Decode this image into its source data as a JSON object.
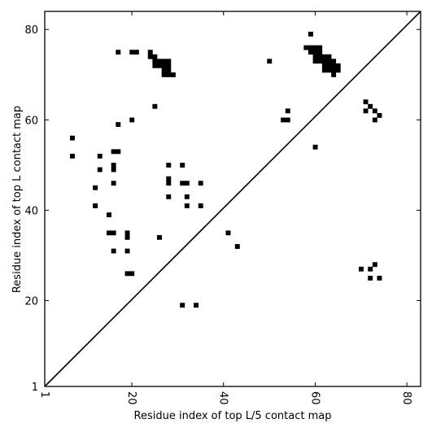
{
  "chart_data": {
    "type": "scatter",
    "title": "",
    "xlabel": "Residue index of top L/5 contact map",
    "ylabel": "Residue index of top L contact map",
    "xlim": [
      1,
      83
    ],
    "ylim": [
      1,
      84
    ],
    "x_ticks": [
      1,
      20,
      40,
      60,
      80
    ],
    "x_tick_labels": [
      "1",
      "20",
      "40",
      "60",
      "80"
    ],
    "y_ticks": [
      1,
      20,
      40,
      60,
      80
    ],
    "y_tick_labels": [
      "1",
      "20",
      "40",
      "60",
      "80"
    ],
    "grid": false,
    "legend": "none",
    "diagonal": {
      "from": [
        1,
        1
      ],
      "to": [
        83,
        84
      ]
    },
    "marker_color": "#000000",
    "points": [
      [
        7,
        56
      ],
      [
        7,
        52
      ],
      [
        13,
        52
      ],
      [
        13,
        49
      ],
      [
        12,
        45
      ],
      [
        12,
        41
      ],
      [
        15,
        39
      ],
      [
        15,
        35
      ],
      [
        16,
        35
      ],
      [
        16,
        31
      ],
      [
        16,
        53
      ],
      [
        17,
        53
      ],
      [
        16,
        50
      ],
      [
        16,
        49
      ],
      [
        16,
        46
      ],
      [
        17,
        59
      ],
      [
        17,
        75
      ],
      [
        19,
        35
      ],
      [
        19,
        34
      ],
      [
        19,
        31
      ],
      [
        19,
        26
      ],
      [
        20,
        26
      ],
      [
        20,
        60
      ],
      [
        20,
        75
      ],
      [
        21,
        75
      ],
      [
        24,
        75
      ],
      [
        24,
        74
      ],
      [
        25,
        74
      ],
      [
        25,
        73
      ],
      [
        26,
        73
      ],
      [
        27,
        73
      ],
      [
        28,
        73
      ],
      [
        25,
        72
      ],
      [
        26,
        72
      ],
      [
        27,
        72
      ],
      [
        28,
        72
      ],
      [
        27,
        71
      ],
      [
        28,
        71
      ],
      [
        27,
        70
      ],
      [
        28,
        70
      ],
      [
        29,
        70
      ],
      [
        25,
        63
      ],
      [
        26,
        34
      ],
      [
        28,
        50
      ],
      [
        28,
        47
      ],
      [
        28,
        46
      ],
      [
        28,
        43
      ],
      [
        31,
        50
      ],
      [
        31,
        46
      ],
      [
        32,
        46
      ],
      [
        32,
        43
      ],
      [
        32,
        41
      ],
      [
        35,
        46
      ],
      [
        35,
        41
      ],
      [
        31,
        19
      ],
      [
        34,
        19
      ],
      [
        41,
        35
      ],
      [
        43,
        32
      ],
      [
        50,
        73
      ],
      [
        53,
        60
      ],
      [
        54,
        60
      ],
      [
        54,
        62
      ],
      [
        58,
        76
      ],
      [
        59,
        76
      ],
      [
        60,
        76
      ],
      [
        61,
        76
      ],
      [
        59,
        75
      ],
      [
        60,
        75
      ],
      [
        61,
        75
      ],
      [
        59,
        79
      ],
      [
        60,
        74
      ],
      [
        61,
        74
      ],
      [
        62,
        74
      ],
      [
        63,
        74
      ],
      [
        60,
        73
      ],
      [
        61,
        73
      ],
      [
        62,
        73
      ],
      [
        63,
        73
      ],
      [
        64,
        73
      ],
      [
        62,
        72
      ],
      [
        63,
        72
      ],
      [
        64,
        72
      ],
      [
        65,
        72
      ],
      [
        62,
        71
      ],
      [
        63,
        71
      ],
      [
        64,
        71
      ],
      [
        65,
        71
      ],
      [
        64,
        70
      ],
      [
        60,
        54
      ],
      [
        71,
        64
      ],
      [
        71,
        62
      ],
      [
        72,
        63
      ],
      [
        73,
        62
      ],
      [
        73,
        60
      ],
      [
        74,
        61
      ],
      [
        70,
        27
      ],
      [
        72,
        27
      ],
      [
        73,
        28
      ],
      [
        72,
        25
      ],
      [
        74,
        25
      ]
    ]
  }
}
